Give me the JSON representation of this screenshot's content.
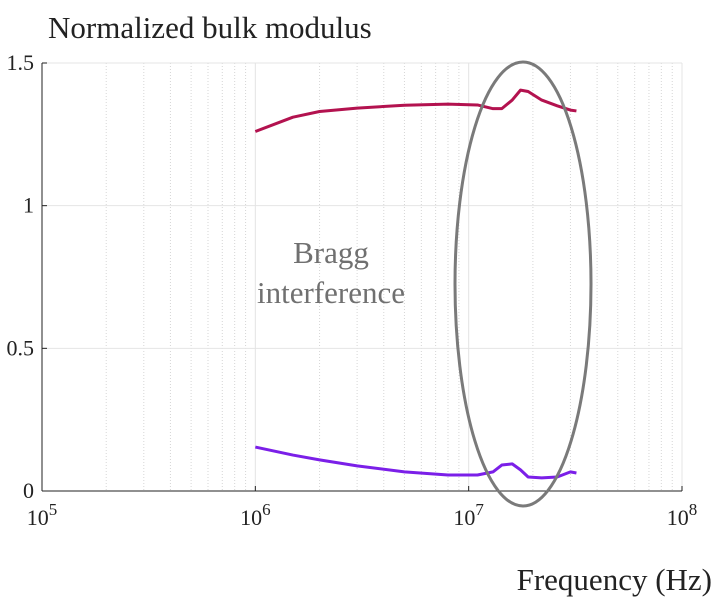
{
  "chart_data": {
    "type": "line",
    "title": "Normalized bulk modulus",
    "xlabel": "Frequency (Hz)",
    "xscale": "log",
    "grid": true,
    "minor_grid": true,
    "xlim": [
      100000,
      100000000
    ],
    "xticks": [
      {
        "value": 100000,
        "label": "10^5"
      },
      {
        "value": 1000000,
        "label": "10^6"
      },
      {
        "value": 10000000,
        "label": "10^7"
      },
      {
        "value": 100000000,
        "label": "10^8"
      }
    ],
    "ylim": [
      0,
      1.5
    ],
    "yticks": [
      0,
      0.5,
      1,
      1.5
    ],
    "annotation": [
      "Bragg",
      "interference"
    ],
    "x": [
      1000000,
      1500000,
      2000000,
      3000000,
      5000000,
      8000000,
      11000000,
      13000000,
      14300000,
      16000000,
      17500000,
      19000000,
      22000000,
      26000000,
      30000000,
      32000000
    ],
    "series": [
      {
        "color": "#b3124f",
        "values": [
          1.26,
          1.31,
          1.33,
          1.342,
          1.352,
          1.356,
          1.353,
          1.34,
          1.34,
          1.37,
          1.405,
          1.4,
          1.37,
          1.35,
          1.335,
          1.332
        ]
      },
      {
        "color": "#7b1fe8",
        "values": [
          0.154,
          0.126,
          0.109,
          0.088,
          0.067,
          0.056,
          0.056,
          0.067,
          0.091,
          0.095,
          0.074,
          0.049,
          0.046,
          0.049,
          0.067,
          0.063
        ]
      }
    ]
  }
}
